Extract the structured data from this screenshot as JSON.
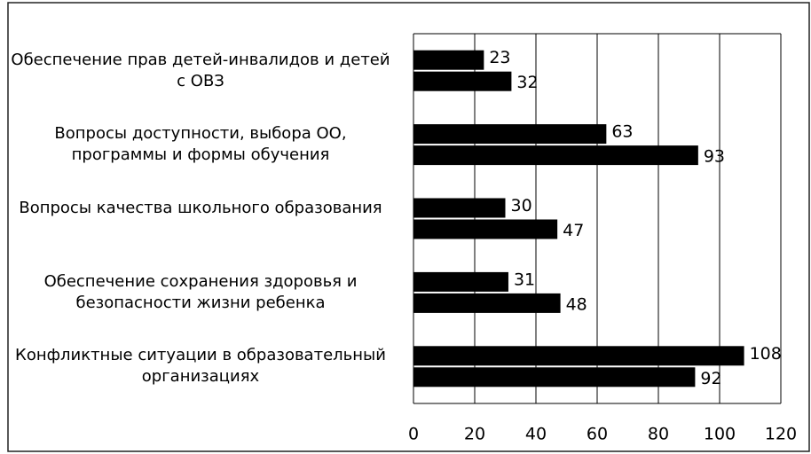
{
  "chart_data": {
    "type": "bar",
    "orientation": "horizontal",
    "categories": [
      "Обеспечение прав детей-инвалидов и детей с ОВЗ",
      "Вопросы доступности, выбора ОО, программы и формы обучения",
      "Вопросы качества школьного образования",
      "Обеспечение сохранения здоровья и безопасности жизни ребенка",
      "Конфликтные ситуации в образовательный организациях"
    ],
    "series": [
      {
        "color": "#000000",
        "values": [
          23,
          63,
          30,
          31,
          108
        ]
      },
      {
        "color": "#000000",
        "values": [
          32,
          93,
          47,
          48,
          92
        ]
      }
    ],
    "xlim": [
      0,
      120
    ],
    "xticks": [
      0,
      20,
      40,
      60,
      80,
      100,
      120
    ],
    "grid": true
  }
}
